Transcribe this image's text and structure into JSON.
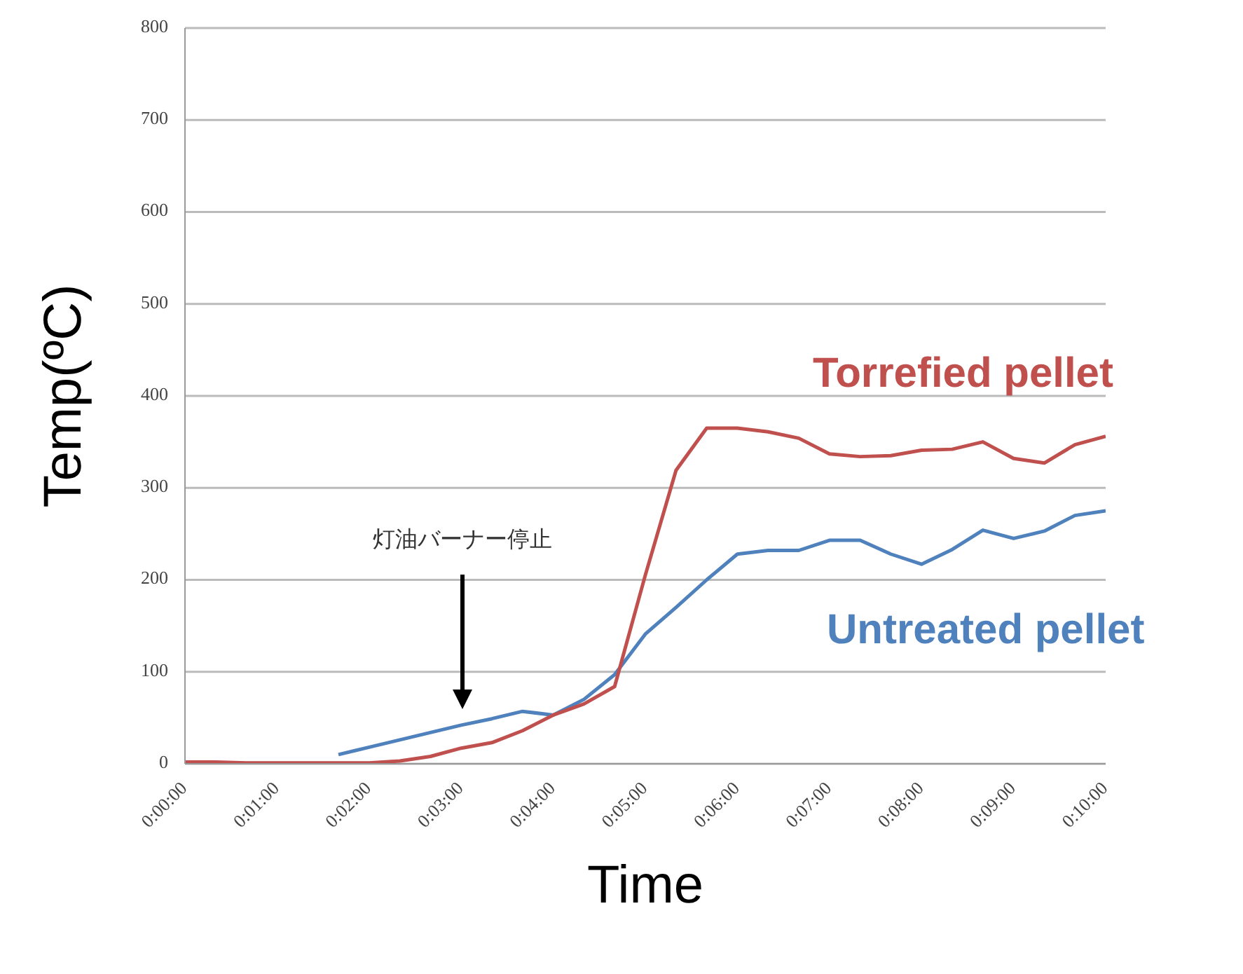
{
  "chart_data": {
    "type": "line",
    "xlabel": "Time",
    "ylabel": "Temp(ºC)",
    "x": [
      0,
      0.00556,
      0.01111,
      0.01667,
      0.02222,
      0.02778,
      0.03333,
      0.03889,
      0.04444,
      0.05,
      0.05556,
      0.06111,
      0.06667,
      0.07222,
      0.07778,
      0.08333,
      0.08889,
      0.09444,
      0.1,
      0.10556,
      0.11111,
      0.11667,
      0.12222,
      0.12778,
      0.13333,
      0.13889,
      0.14444,
      0.15,
      0.15556,
      0.16111,
      0.16667
    ],
    "series": [
      {
        "name": "Torrefied pellet",
        "color": "#c0504d",
        "values": [
          2,
          2,
          1,
          1,
          1,
          1,
          1,
          3,
          8,
          17,
          23,
          36,
          53,
          65,
          84,
          205,
          319,
          365,
          365,
          361,
          354,
          337,
          334,
          335,
          341,
          342,
          350,
          332,
          327,
          347,
          356
        ]
      },
      {
        "name": "Untreated pellet",
        "color": "#4f81bd",
        "values": [
          null,
          null,
          null,
          null,
          null,
          10,
          18,
          26,
          34,
          42,
          49,
          57,
          53,
          70,
          97,
          141,
          170,
          200,
          228,
          232,
          232,
          243,
          243,
          228,
          217,
          233,
          254,
          245,
          253,
          270,
          275
        ]
      }
    ],
    "xlim": [
      0,
      0.16667
    ],
    "xticks": [
      {
        "value": 0,
        "label": "0:00:00"
      },
      {
        "value": 0.01667,
        "label": "0:01:00"
      },
      {
        "value": 0.03333,
        "label": "0:02:00"
      },
      {
        "value": 0.05,
        "label": "0:03:00"
      },
      {
        "value": 0.06667,
        "label": "0:04:00"
      },
      {
        "value": 0.08333,
        "label": "0:05:00"
      },
      {
        "value": 0.1,
        "label": "0:06:00"
      },
      {
        "value": 0.11667,
        "label": "0:07:00"
      },
      {
        "value": 0.13333,
        "label": "0:08:00"
      },
      {
        "value": 0.15,
        "label": "0:09:00"
      },
      {
        "value": 0.16667,
        "label": "0:10:00"
      }
    ],
    "ylim": [
      0,
      800
    ],
    "yticks": [
      0,
      100,
      200,
      300,
      400,
      500,
      600,
      700,
      800
    ],
    "grid": "y",
    "annotations": [
      "灯油バーナー停止"
    ]
  }
}
